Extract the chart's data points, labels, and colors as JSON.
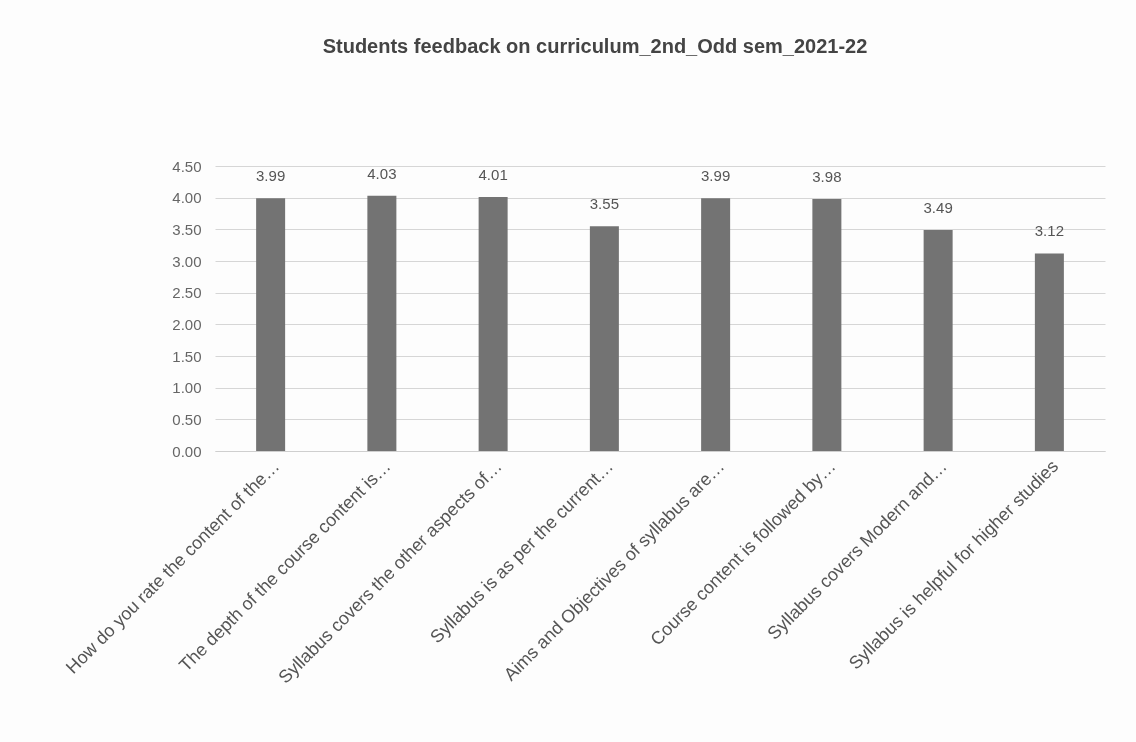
{
  "chart_data": {
    "type": "bar",
    "title": "Students feedback on curriculum_2nd_Odd sem_2021-22",
    "categories": [
      "How do you rate the content of the…",
      "The depth of the course content is…",
      "Syllabus covers the other aspects of…",
      "Syllabus is as per the current…",
      "Aims and Objectives of syllabus are…",
      "Course content is followed by…",
      "Syllabus covers Modern and…",
      "Syllabus is helpful for higher studies"
    ],
    "values": [
      3.99,
      4.03,
      4.01,
      3.55,
      3.99,
      3.98,
      3.49,
      3.12
    ],
    "color": "#737373",
    "ylim": [
      0,
      4.5
    ],
    "yticks": [
      {
        "value": 0,
        "label": "0.00"
      },
      {
        "value": 0.5,
        "label": "0.50"
      },
      {
        "value": 1,
        "label": "1.00"
      },
      {
        "value": 1.5,
        "label": "1.50"
      },
      {
        "value": 2,
        "label": "2.00"
      },
      {
        "value": 2.5,
        "label": "2.50"
      },
      {
        "value": 3,
        "label": "3.00"
      },
      {
        "value": 3.5,
        "label": "3.50"
      },
      {
        "value": 4,
        "label": "4.00"
      },
      {
        "value": 4.5,
        "label": "4.50"
      }
    ],
    "grid": "y",
    "data_labels": true
  }
}
